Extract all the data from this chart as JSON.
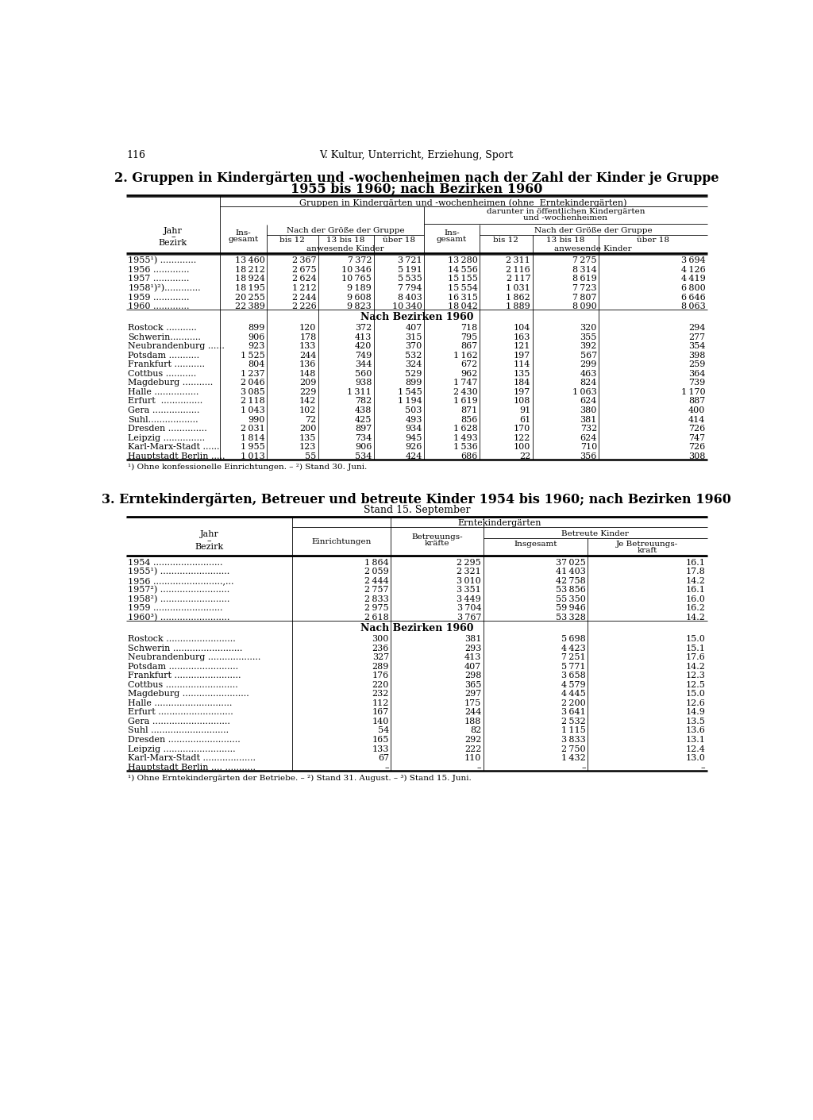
{
  "page_number": "116",
  "header": "V. Kultur, Unterricht, Erziehung, Sport",
  "table1_title_line1": "2. Gruppen in Kindergärten und -wochenheimen nach der Zahl der Kinder je Gruppe",
  "table1_title_line2": "1955 bis 1960; nach Bezirken 1960",
  "table1_col_header1": "Gruppen in Kindergärten und -wochenheimen (ohne  Erntekindergärten)",
  "table1_col_header2a": "darunter in öffentlichen Kindergärten",
  "table1_col_header2b": "und -wochenheimen",
  "table1_subheader_left": "Nach der Größe der Gruppe",
  "table1_subheader_right": "Nach der Größe der Gruppe",
  "table1_anwesende": "anwesende Kinder",
  "table1_jahre_dots": [
    "1955¹) .............",
    "1956 .............",
    "1957 .............",
    "1958¹)²).............",
    "1959 .............",
    "1960 ............."
  ],
  "table1_data_jahre": [
    [
      13460,
      2367,
      7372,
      3721,
      13280,
      2311,
      7275,
      3694
    ],
    [
      18212,
      2675,
      10346,
      5191,
      14556,
      2116,
      8314,
      4126
    ],
    [
      18924,
      2624,
      10765,
      5535,
      15155,
      2117,
      8619,
      4419
    ],
    [
      18195,
      1212,
      9189,
      7794,
      15554,
      1031,
      7723,
      6800
    ],
    [
      20255,
      2244,
      9608,
      8403,
      16315,
      1862,
      7807,
      6646
    ],
    [
      22389,
      2226,
      9823,
      10340,
      18042,
      1889,
      8090,
      8063
    ]
  ],
  "table1_bezirken_header": "Nach Bezirken 1960",
  "table1_bezirke_dots": [
    "Rostock ...........",
    "Schwerin...........",
    "Neubrandenburg ......",
    "Potsdam ...........",
    "Frankfurt ...........",
    "Cottbus ...........",
    "Magdeburg ...........",
    "Halle ................",
    "Erfurt  ...............",
    "Gera .................",
    "Suhl..................",
    "Dresden ..............",
    "Leipzig ...............",
    "Karl-Marx-Stadt ......",
    "Hauptstadt Berlin ....."
  ],
  "table1_data_bezirke": [
    [
      899,
      120,
      372,
      407,
      718,
      104,
      320,
      294
    ],
    [
      906,
      178,
      413,
      315,
      795,
      163,
      355,
      277
    ],
    [
      923,
      133,
      420,
      370,
      867,
      121,
      392,
      354
    ],
    [
      1525,
      244,
      749,
      532,
      1162,
      197,
      567,
      398
    ],
    [
      804,
      136,
      344,
      324,
      672,
      114,
      299,
      259
    ],
    [
      1237,
      148,
      560,
      529,
      962,
      135,
      463,
      364
    ],
    [
      2046,
      209,
      938,
      899,
      1747,
      184,
      824,
      739
    ],
    [
      3085,
      229,
      1311,
      1545,
      2430,
      197,
      1063,
      1170
    ],
    [
      2118,
      142,
      782,
      1194,
      1619,
      108,
      624,
      887
    ],
    [
      1043,
      102,
      438,
      503,
      871,
      91,
      380,
      400
    ],
    [
      990,
      72,
      425,
      493,
      856,
      61,
      381,
      414
    ],
    [
      2031,
      200,
      897,
      934,
      1628,
      170,
      732,
      726
    ],
    [
      1814,
      135,
      734,
      945,
      1493,
      122,
      624,
      747
    ],
    [
      1955,
      123,
      906,
      926,
      1536,
      100,
      710,
      726
    ],
    [
      1013,
      55,
      534,
      424,
      686,
      22,
      356,
      308
    ]
  ],
  "table1_footnote": "¹) Ohne konfessionelle Einrichtungen. – ²) Stand 30. Juni.",
  "table2_title_line1": "3. Erntekindergärten, Betreuer und betreute Kinder 1954 bis 1960; nach Bezirken 1960",
  "table2_title_line2": "Stand 15. September",
  "table2_col_header": "Erntekindergärten",
  "table2_col_einrichtungen": "Einrichtungen",
  "table2_col_betreute_header": "Betreute Kinder",
  "table2_col_insgesamt": "Insgesamt",
  "table2_jahre_dots": [
    "1954 .........................",
    "1955¹) .........................",
    "1956 .........................,...",
    "1957²) .........................",
    "1958²) .........................",
    "1959 .........................",
    "1960³) ........................."
  ],
  "table2_data_jahre": [
    [
      1864,
      2295,
      37025,
      16.1
    ],
    [
      2059,
      2321,
      41403,
      17.8
    ],
    [
      2444,
      3010,
      42758,
      14.2
    ],
    [
      2757,
      3351,
      53856,
      16.1
    ],
    [
      2833,
      3449,
      55350,
      16.0
    ],
    [
      2975,
      3704,
      59946,
      16.2
    ],
    [
      2618,
      3767,
      53328,
      14.2
    ]
  ],
  "table2_bezirken_header": "Nach Bezirken 1960",
  "table2_bezirke_dots": [
    "Rostock .........................",
    "Schwerin .........................",
    "Neubrandenburg ...................",
    "Potsdam .........................",
    "Frankfurt ........................",
    "Cottbus ..........................",
    "Magdeburg ........................",
    "Halle ............................",
    "Erfurt ...........................",
    "Gera ............................",
    "Suhl ............................",
    "Dresden ..........................",
    "Leipzig ..........................",
    "Karl-Marx-Stadt ...................",
    "Hauptstadt Berlin .... ..........."
  ],
  "table2_data_bezirke": [
    [
      300,
      381,
      5698,
      15.0
    ],
    [
      236,
      293,
      4423,
      15.1
    ],
    [
      327,
      413,
      7251,
      17.6
    ],
    [
      289,
      407,
      5771,
      14.2
    ],
    [
      176,
      298,
      3658,
      12.3
    ],
    [
      220,
      365,
      4579,
      12.5
    ],
    [
      232,
      297,
      4445,
      15.0
    ],
    [
      112,
      175,
      2200,
      12.6
    ],
    [
      167,
      244,
      3641,
      14.9
    ],
    [
      140,
      188,
      2532,
      13.5
    ],
    [
      54,
      82,
      1115,
      13.6
    ],
    [
      165,
      292,
      3833,
      13.1
    ],
    [
      133,
      222,
      2750,
      12.4
    ],
    [
      67,
      110,
      1432,
      13.0
    ],
    [
      "--",
      "--",
      "--",
      "--"
    ]
  ],
  "table2_footnote": "¹) Ohne Erntekindergärten der Betriebe. – ²) Stand 31. August. – ³) Stand 15. Juni."
}
